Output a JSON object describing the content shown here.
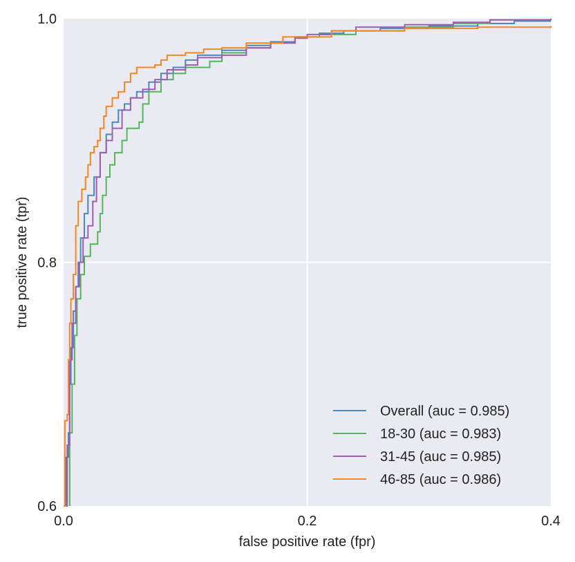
{
  "chart_data": {
    "type": "line",
    "title": "",
    "xlabel": "false positive rate (fpr)",
    "ylabel": "true positive rate (tpr)",
    "xlim": [
      0.0,
      0.4
    ],
    "ylim": [
      0.6,
      1.0
    ],
    "x_ticks": [
      0.0,
      0.2,
      0.4
    ],
    "x_tick_labels": [
      "0.0",
      "0.2",
      "0.4"
    ],
    "y_ticks": [
      0.6,
      0.8,
      1.0
    ],
    "y_tick_labels": [
      "0.6",
      "0.8",
      "1.0"
    ],
    "grid": true,
    "background": "#eaeaf2",
    "legend_position": "lower-right",
    "series": [
      {
        "name": "Overall (auc = 0.985)",
        "color": "#4c86c0",
        "points": [
          [
            0.002,
            0.6
          ],
          [
            0.002,
            0.64
          ],
          [
            0.004,
            0.66
          ],
          [
            0.005,
            0.7
          ],
          [
            0.006,
            0.73
          ],
          [
            0.008,
            0.76
          ],
          [
            0.01,
            0.78
          ],
          [
            0.012,
            0.8
          ],
          [
            0.014,
            0.82
          ],
          [
            0.017,
            0.84
          ],
          [
            0.02,
            0.855
          ],
          [
            0.025,
            0.87
          ],
          [
            0.03,
            0.89
          ],
          [
            0.035,
            0.905
          ],
          [
            0.04,
            0.915
          ],
          [
            0.045,
            0.925
          ],
          [
            0.05,
            0.93
          ],
          [
            0.055,
            0.935
          ],
          [
            0.06,
            0.94
          ],
          [
            0.07,
            0.948
          ],
          [
            0.08,
            0.955
          ],
          [
            0.09,
            0.96
          ],
          [
            0.1,
            0.966
          ],
          [
            0.11,
            0.97
          ],
          [
            0.13,
            0.974
          ],
          [
            0.15,
            0.978
          ],
          [
            0.17,
            0.981
          ],
          [
            0.19,
            0.985
          ],
          [
            0.21,
            0.988
          ],
          [
            0.23,
            0.99
          ],
          [
            0.26,
            0.992
          ],
          [
            0.3,
            0.994
          ],
          [
            0.34,
            0.996
          ],
          [
            0.37,
            0.998
          ],
          [
            0.4,
            0.998
          ]
        ]
      },
      {
        "name": "18-30 (auc = 0.983)",
        "color": "#55b45c",
        "points": [
          [
            0.005,
            0.6
          ],
          [
            0.005,
            0.66
          ],
          [
            0.007,
            0.7
          ],
          [
            0.009,
            0.74
          ],
          [
            0.011,
            0.77
          ],
          [
            0.014,
            0.79
          ],
          [
            0.017,
            0.805
          ],
          [
            0.022,
            0.815
          ],
          [
            0.028,
            0.825
          ],
          [
            0.03,
            0.84
          ],
          [
            0.032,
            0.855
          ],
          [
            0.035,
            0.87
          ],
          [
            0.038,
            0.88
          ],
          [
            0.042,
            0.89
          ],
          [
            0.048,
            0.9
          ],
          [
            0.052,
            0.91
          ],
          [
            0.062,
            0.915
          ],
          [
            0.065,
            0.93
          ],
          [
            0.07,
            0.94
          ],
          [
            0.08,
            0.95
          ],
          [
            0.09,
            0.955
          ],
          [
            0.1,
            0.96
          ],
          [
            0.12,
            0.965
          ],
          [
            0.13,
            0.972
          ],
          [
            0.15,
            0.976
          ],
          [
            0.17,
            0.98
          ],
          [
            0.19,
            0.985
          ],
          [
            0.21,
            0.987
          ],
          [
            0.24,
            0.99
          ],
          [
            0.28,
            0.993
          ],
          [
            0.32,
            0.996
          ],
          [
            0.35,
            0.999
          ],
          [
            0.4,
            1.0
          ]
        ]
      },
      {
        "name": "31-45 (auc = 0.985)",
        "color": "#a05bb2",
        "points": [
          [
            0.002,
            0.6
          ],
          [
            0.003,
            0.65
          ],
          [
            0.005,
            0.72
          ],
          [
            0.007,
            0.75
          ],
          [
            0.01,
            0.78
          ],
          [
            0.013,
            0.8
          ],
          [
            0.016,
            0.82
          ],
          [
            0.02,
            0.83
          ],
          [
            0.024,
            0.85
          ],
          [
            0.027,
            0.87
          ],
          [
            0.03,
            0.89
          ],
          [
            0.035,
            0.9
          ],
          [
            0.04,
            0.91
          ],
          [
            0.048,
            0.925
          ],
          [
            0.055,
            0.935
          ],
          [
            0.065,
            0.942
          ],
          [
            0.075,
            0.95
          ],
          [
            0.085,
            0.958
          ],
          [
            0.1,
            0.962
          ],
          [
            0.11,
            0.968
          ],
          [
            0.13,
            0.97
          ],
          [
            0.15,
            0.976
          ],
          [
            0.17,
            0.98
          ],
          [
            0.19,
            0.984
          ],
          [
            0.2,
            0.987
          ],
          [
            0.22,
            0.99
          ],
          [
            0.24,
            0.993
          ],
          [
            0.28,
            0.995
          ],
          [
            0.32,
            0.997
          ],
          [
            0.35,
            0.999
          ],
          [
            0.4,
            1.0
          ]
        ]
      },
      {
        "name": "46-85 (auc = 0.986)",
        "color": "#f5861f",
        "points": [
          [
            0.0,
            0.6
          ],
          [
            0.001,
            0.67
          ],
          [
            0.003,
            0.675
          ],
          [
            0.004,
            0.72
          ],
          [
            0.005,
            0.75
          ],
          [
            0.006,
            0.77
          ],
          [
            0.008,
            0.79
          ],
          [
            0.01,
            0.83
          ],
          [
            0.012,
            0.85
          ],
          [
            0.015,
            0.86
          ],
          [
            0.018,
            0.87
          ],
          [
            0.02,
            0.88
          ],
          [
            0.022,
            0.89
          ],
          [
            0.025,
            0.895
          ],
          [
            0.028,
            0.9
          ],
          [
            0.03,
            0.91
          ],
          [
            0.033,
            0.92
          ],
          [
            0.035,
            0.928
          ],
          [
            0.04,
            0.935
          ],
          [
            0.045,
            0.94
          ],
          [
            0.05,
            0.948
          ],
          [
            0.055,
            0.955
          ],
          [
            0.06,
            0.96
          ],
          [
            0.075,
            0.962
          ],
          [
            0.08,
            0.966
          ],
          [
            0.085,
            0.97
          ],
          [
            0.1,
            0.972
          ],
          [
            0.115,
            0.975
          ],
          [
            0.13,
            0.976
          ],
          [
            0.15,
            0.98
          ],
          [
            0.18,
            0.985
          ],
          [
            0.22,
            0.99
          ],
          [
            0.28,
            0.992
          ],
          [
            0.34,
            0.993
          ],
          [
            0.4,
            0.994
          ]
        ]
      }
    ]
  }
}
